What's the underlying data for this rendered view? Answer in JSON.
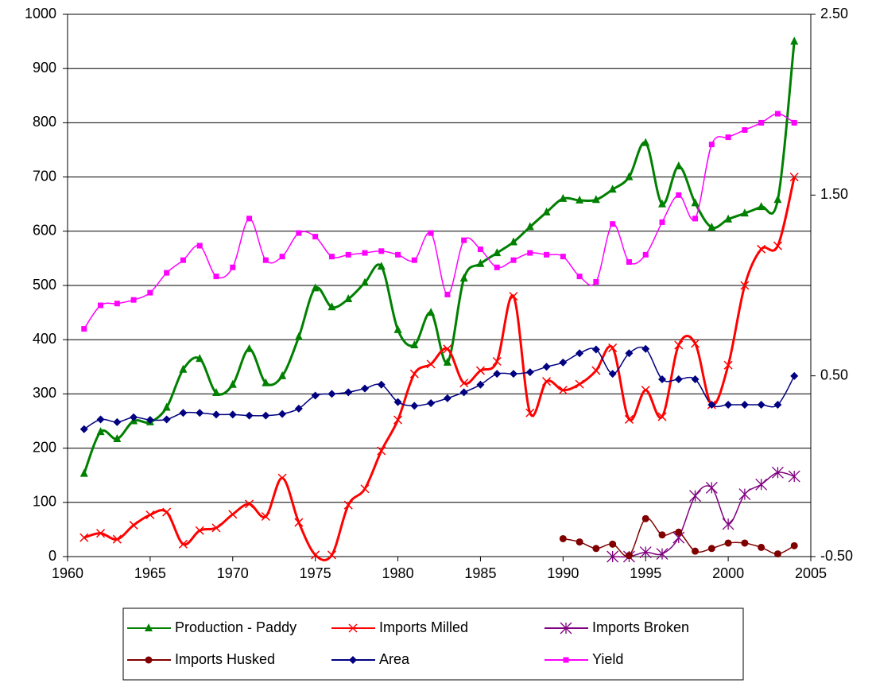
{
  "chart_data": {
    "type": "line",
    "x": [
      1961,
      1962,
      1963,
      1964,
      1965,
      1966,
      1967,
      1968,
      1969,
      1970,
      1971,
      1972,
      1973,
      1974,
      1975,
      1976,
      1977,
      1978,
      1979,
      1980,
      1981,
      1982,
      1983,
      1984,
      1985,
      1986,
      1987,
      1988,
      1989,
      1990,
      1991,
      1992,
      1993,
      1994,
      1995,
      1996,
      1997,
      1998,
      1999,
      2000,
      2001,
      2002,
      2003,
      2004
    ],
    "xlim": [
      1960,
      2005
    ],
    "xticks": [
      1960,
      1965,
      1970,
      1975,
      1980,
      1985,
      1990,
      1995,
      2000,
      2005
    ],
    "ylim": [
      0,
      1000
    ],
    "yticks": [
      0,
      100,
      200,
      300,
      400,
      500,
      600,
      700,
      800,
      900,
      1000
    ],
    "y2lim": [
      -0.5,
      2.5
    ],
    "y2ticks": [
      {
        "value": -0.5,
        "label": "-0.50"
      },
      {
        "value": 0.5,
        "label": "0.50"
      },
      {
        "value": 1.5,
        "label": "1.50"
      },
      {
        "value": 2.5,
        "label": "2.50"
      }
    ],
    "grid": true,
    "legend": "bottom",
    "series": [
      {
        "name": "Production - Paddy",
        "color": "#008000",
        "marker": "triangle",
        "values": [
          153,
          230,
          217,
          250,
          248,
          275,
          345,
          365,
          302,
          317,
          383,
          320,
          333,
          405,
          495,
          460,
          475,
          505,
          535,
          418,
          390,
          450,
          358,
          513,
          540,
          560,
          580,
          608,
          635,
          660,
          657,
          658,
          677,
          700,
          763,
          650,
          720,
          652,
          607,
          622,
          633,
          645,
          658,
          950
        ]
      },
      {
        "name": "Imports Milled",
        "color": "#ff0000",
        "marker": "x",
        "values": [
          35,
          43,
          32,
          58,
          77,
          82,
          23,
          48,
          53,
          78,
          97,
          74,
          145,
          63,
          3,
          3,
          95,
          125,
          195,
          252,
          337,
          355,
          383,
          320,
          343,
          360,
          480,
          265,
          323,
          307,
          318,
          343,
          385,
          253,
          307,
          258,
          390,
          393,
          280,
          353,
          500,
          567,
          573,
          700
        ]
      },
      {
        "name": "Imports Broken",
        "color": "#800080",
        "marker": "star",
        "values": [
          null,
          null,
          null,
          null,
          null,
          null,
          null,
          null,
          null,
          null,
          null,
          null,
          null,
          null,
          null,
          null,
          null,
          null,
          null,
          null,
          null,
          null,
          null,
          null,
          null,
          null,
          null,
          null,
          null,
          null,
          null,
          null,
          0,
          0,
          8,
          5,
          35,
          112,
          127,
          60,
          115,
          133,
          155,
          148
        ]
      },
      {
        "name": "Imports Husked",
        "color": "#800000",
        "marker": "circle",
        "values": [
          null,
          null,
          null,
          null,
          null,
          null,
          null,
          null,
          null,
          null,
          null,
          null,
          null,
          null,
          null,
          null,
          null,
          null,
          null,
          null,
          null,
          null,
          null,
          null,
          null,
          null,
          null,
          null,
          null,
          33,
          27,
          15,
          23,
          2,
          70,
          40,
          45,
          10,
          15,
          25,
          25,
          17,
          5,
          20
        ]
      },
      {
        "name": "Area",
        "color": "#000080",
        "marker": "diamond",
        "values": [
          235,
          253,
          248,
          257,
          252,
          253,
          265,
          265,
          262,
          262,
          260,
          260,
          263,
          273,
          297,
          300,
          303,
          310,
          317,
          285,
          278,
          283,
          292,
          303,
          317,
          337,
          337,
          340,
          350,
          358,
          375,
          382,
          337,
          375,
          383,
          327,
          327,
          327,
          280,
          280,
          280,
          280,
          280,
          333
        ]
      },
      {
        "name": "Yield",
        "color": "#ff00ff",
        "marker": "square",
        "axis": "y2",
        "values": [
          0.76,
          0.89,
          0.9,
          0.92,
          0.96,
          1.07,
          1.14,
          1.22,
          1.05,
          1.1,
          1.37,
          1.14,
          1.16,
          1.29,
          1.27,
          1.16,
          1.17,
          1.18,
          1.19,
          1.17,
          1.14,
          1.29,
          0.95,
          1.25,
          1.2,
          1.1,
          1.14,
          1.18,
          1.17,
          1.16,
          1.05,
          1.02,
          1.34,
          1.13,
          1.17,
          1.35,
          1.5,
          1.37,
          1.78,
          1.82,
          1.86,
          1.9,
          1.95,
          1.9
        ]
      }
    ]
  }
}
